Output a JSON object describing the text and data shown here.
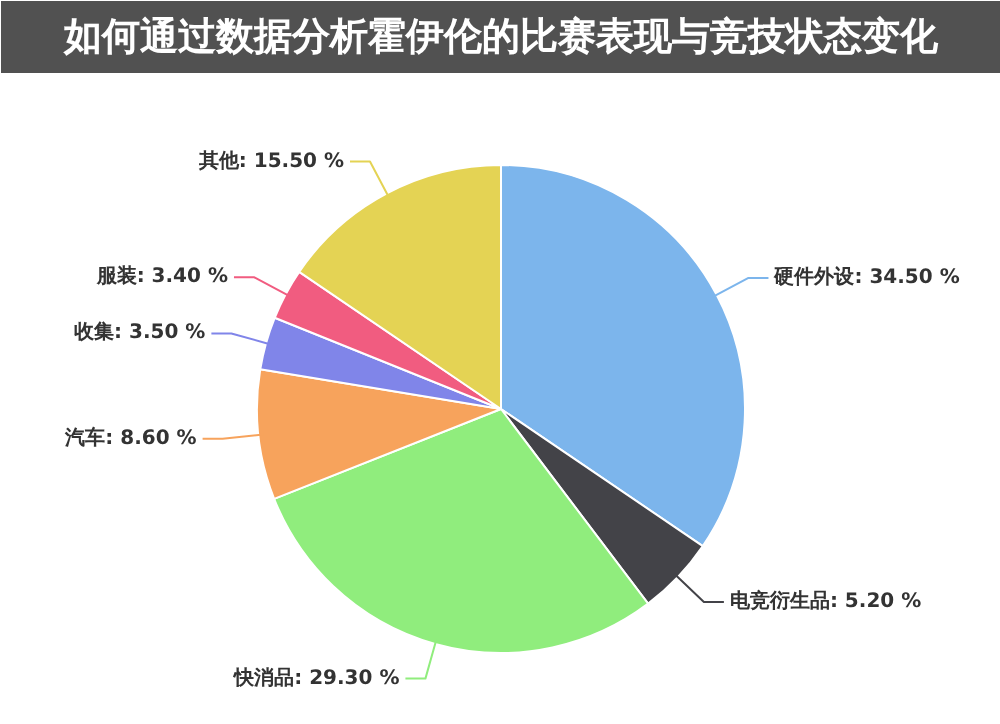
{
  "chart_data": {
    "type": "pie",
    "title": "如何通过数据分析霍伊伦的比赛表现与竞技状态变化",
    "categories": [
      "硬件外设",
      "电竞衍生品",
      "快消品",
      "汽车",
      "收集",
      "服装",
      "其他"
    ],
    "values": [
      34.5,
      5.2,
      29.3,
      8.6,
      3.5,
      3.4,
      15.5
    ],
    "value_labels": [
      "34.50 %",
      "5.20 %",
      "29.30 %",
      "8.60 %",
      "3.50 %",
      "3.40 %",
      "15.50 %"
    ],
    "colors": [
      "#7cb5ec",
      "#434348",
      "#90ed7d",
      "#f7a35c",
      "#8085e9",
      "#f15c80",
      "#e4d354"
    ]
  }
}
